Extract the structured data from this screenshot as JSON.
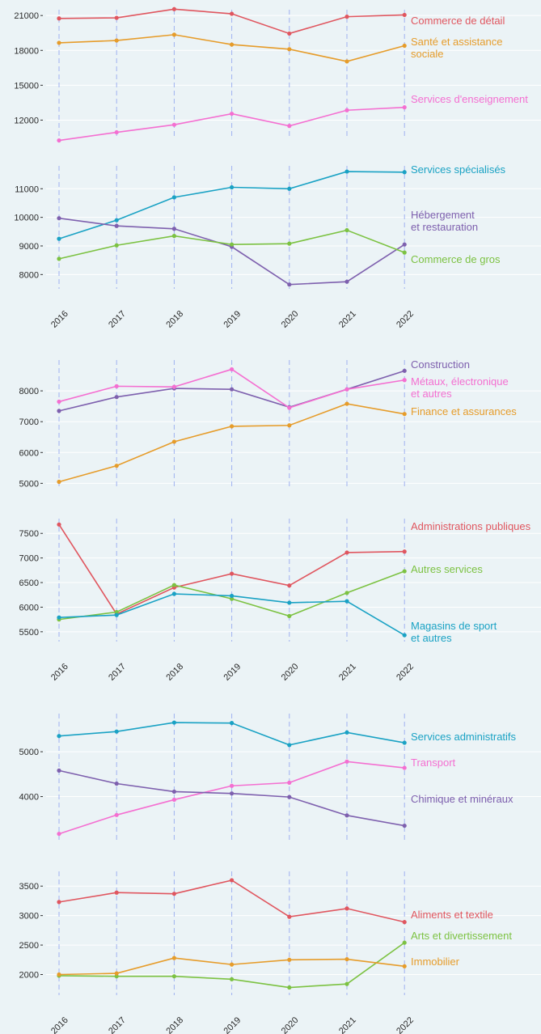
{
  "chart_data": [
    {
      "type": "line",
      "x": [
        "2016",
        "2017",
        "2018",
        "2019",
        "2020",
        "2021",
        "2022"
      ],
      "ylim": [
        10500,
        21500
      ],
      "yticks": [
        12000,
        15000,
        18000,
        21000
      ],
      "show_xlabels": false,
      "series": [
        {
          "name": "Commerce de détail",
          "color": "#e0565f",
          "values": [
            20750,
            20800,
            21550,
            21150,
            19450,
            20900,
            21050
          ]
        },
        {
          "name": "Santé et assistance sociale",
          "color": "#e69c2a",
          "values": [
            18650,
            18850,
            19350,
            18500,
            18100,
            17050,
            18400
          ]
        },
        {
          "name": "Services d'enseignement",
          "color": "#f46fd1",
          "values": [
            10250,
            10950,
            11600,
            12550,
            11500,
            12850,
            13100
          ]
        }
      ]
    },
    {
      "type": "line",
      "x": [
        "2016",
        "2017",
        "2018",
        "2019",
        "2020",
        "2021",
        "2022"
      ],
      "ylim": [
        7500,
        11800
      ],
      "yticks": [
        8000,
        9000,
        10000,
        11000
      ],
      "show_xlabels": true,
      "series": [
        {
          "name": "Services spécialisés",
          "color": "#1aa2c4",
          "values": [
            9250,
            9900,
            10700,
            11050,
            11000,
            11600,
            11580
          ]
        },
        {
          "name": "Hébergement et restauration",
          "color": "#7e60ae",
          "values": [
            9970,
            9700,
            9600,
            8970,
            7650,
            7750,
            9050
          ]
        },
        {
          "name": "Commerce de gros",
          "color": "#7cc242",
          "values": [
            8550,
            9020,
            9350,
            9050,
            9080,
            9550,
            8770
          ]
        }
      ]
    },
    {
      "type": "line",
      "x": [
        "2016",
        "2017",
        "2018",
        "2019",
        "2020",
        "2021",
        "2022"
      ],
      "ylim": [
        4800,
        9000
      ],
      "yticks": [
        5000,
        6000,
        7000,
        8000
      ],
      "show_xlabels": false,
      "series": [
        {
          "name": "Construction",
          "color": "#7e60ae",
          "values": [
            7350,
            7800,
            8080,
            8050,
            7470,
            8050,
            8650
          ]
        },
        {
          "name": "Métaux, électronique et autres",
          "color": "#f46fd1",
          "values": [
            7650,
            8150,
            8130,
            8700,
            7450,
            8050,
            8350
          ]
        },
        {
          "name": "Finance et assurances",
          "color": "#e69c2a",
          "values": [
            5050,
            5570,
            6350,
            6850,
            6880,
            7580,
            7250
          ]
        }
      ]
    },
    {
      "type": "line",
      "x": [
        "2016",
        "2017",
        "2018",
        "2019",
        "2020",
        "2021",
        "2022"
      ],
      "ylim": [
        5300,
        7800
      ],
      "yticks": [
        5500,
        6000,
        6500,
        7000,
        7500
      ],
      "show_xlabels": true,
      "series": [
        {
          "name": "Administrations publiques",
          "color": "#e0565f",
          "values": [
            7680,
            5860,
            6400,
            6680,
            6440,
            7110,
            7130
          ]
        },
        {
          "name": "Autres services",
          "color": "#7cc242",
          "values": [
            5750,
            5900,
            6450,
            6170,
            5820,
            6290,
            6730
          ]
        },
        {
          "name": "Magasins de sport et autres",
          "color": "#1aa2c4",
          "values": [
            5790,
            5840,
            6270,
            6230,
            6090,
            6120,
            5430
          ]
        }
      ]
    },
    {
      "type": "line",
      "x": [
        "2016",
        "2017",
        "2018",
        "2019",
        "2020",
        "2021",
        "2022"
      ],
      "ylim": [
        3000,
        5850
      ],
      "yticks": [
        4000,
        5000
      ],
      "show_xlabels": false,
      "series": [
        {
          "name": "Services administratifs",
          "color": "#1aa2c4",
          "values": [
            5350,
            5450,
            5650,
            5640,
            5150,
            5430,
            5200
          ]
        },
        {
          "name": "Transport",
          "color": "#f46fd1",
          "values": [
            3170,
            3590,
            3930,
            4240,
            4310,
            4780,
            4640
          ]
        },
        {
          "name": "Chimique et minéraux",
          "color": "#7e60ae",
          "values": [
            4580,
            4290,
            4110,
            4070,
            3990,
            3580,
            3350
          ]
        }
      ]
    },
    {
      "type": "line",
      "x": [
        "2016",
        "2017",
        "2018",
        "2019",
        "2020",
        "2021",
        "2022"
      ],
      "ylim": [
        1650,
        3750
      ],
      "yticks": [
        2000,
        2500,
        3000,
        3500
      ],
      "show_xlabels": true,
      "series": [
        {
          "name": "Aliments et textile",
          "color": "#e0565f",
          "values": [
            3230,
            3390,
            3370,
            3600,
            2980,
            3120,
            2890
          ]
        },
        {
          "name": "Arts et divertissement",
          "color": "#7cc242",
          "values": [
            1980,
            1970,
            1970,
            1920,
            1780,
            1840,
            2540
          ]
        },
        {
          "name": "Immobilier",
          "color": "#e69c2a",
          "values": [
            2000,
            2020,
            2280,
            2170,
            2250,
            2260,
            2140
          ]
        }
      ]
    }
  ]
}
